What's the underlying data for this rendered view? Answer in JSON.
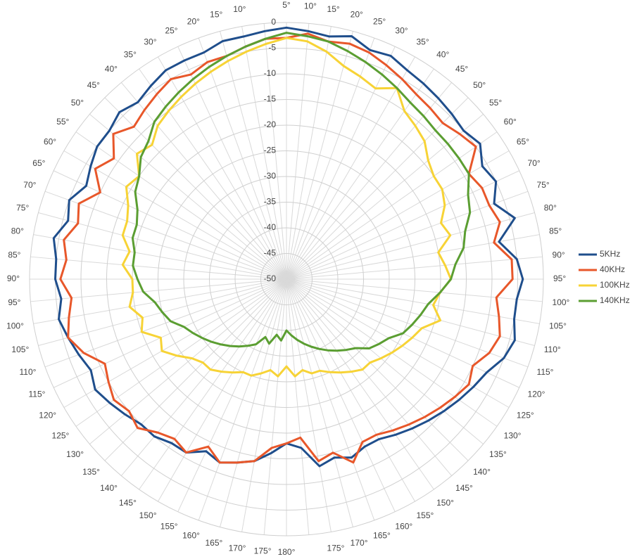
{
  "chart_data": {
    "type": "radar",
    "categories": [
      "5°",
      "10°",
      "15°",
      "20°",
      "25°",
      "30°",
      "35°",
      "40°",
      "45°",
      "50°",
      "55°",
      "60°",
      "65°",
      "70°",
      "75°",
      "80°",
      "85°",
      "90°",
      "95°",
      "100°",
      "105°",
      "110°",
      "115°",
      "120°",
      "125°",
      "130°",
      "135°",
      "140°",
      "145°",
      "150°",
      "155°",
      "160°",
      "165°",
      "170°",
      "175°",
      null,
      "180°",
      "175°",
      "170°",
      "165°",
      "160°",
      "155°",
      "150°",
      "145°",
      "140°",
      "135°",
      "130°",
      "125°",
      "120°",
      "115°",
      "110°",
      "105°",
      "100°",
      "95°",
      "90°",
      "85°",
      "80°",
      "75°",
      "70°",
      "65°",
      "60°",
      "55°",
      "50°",
      "45°",
      "40°",
      "35°",
      "30°",
      "25°",
      "20°",
      "15°",
      "10°",
      null
    ],
    "ylim": [
      -50,
      0
    ],
    "yticks": [
      0,
      -5,
      -10,
      -15,
      -20,
      -25,
      -30,
      -35,
      -40,
      -45,
      -50
    ],
    "grid": true,
    "legend": "right",
    "series": [
      {
        "name": "5KHz",
        "color": "#1f4e8c",
        "values": [
          -1,
          -1.5,
          -2,
          -1,
          -2.5,
          -2,
          -3,
          -3.5,
          -4,
          -4.5,
          -5,
          -4,
          -6,
          -5,
          -7,
          -4,
          -8,
          -5,
          -4,
          -5,
          -5,
          -4,
          -5,
          -7,
          -8,
          -9,
          -10,
          -11,
          -12,
          -13,
          -14,
          -14,
          -13,
          -14,
          -13,
          -17,
          -18,
          -16,
          -14,
          -13,
          -12,
          -13,
          -11,
          -11,
          -10,
          -10,
          -9,
          -8,
          -7,
          -8,
          -7,
          -6,
          -5,
          -6,
          -5,
          -5,
          -4,
          -6,
          -5,
          -7,
          -6,
          -5,
          -5,
          -4,
          -5,
          -4,
          -3,
          -3,
          -3,
          -2,
          -2,
          -1.5
        ]
      },
      {
        "name": "40KHz",
        "color": "#e8572a",
        "values": [
          -3,
          -2,
          -3,
          -2.5,
          -3,
          -4,
          -5,
          -6,
          -6.5,
          -7,
          -6,
          -5,
          -9,
          -8,
          -8,
          -7,
          -9,
          -6,
          -6,
          -9,
          -8,
          -7,
          -8,
          -10,
          -9,
          -10,
          -11,
          -12,
          -13,
          -14,
          -15,
          -15,
          -12,
          -15,
          -14,
          -19,
          -18,
          -17,
          -14,
          -13,
          -12,
          -14,
          -11,
          -12,
          -11,
          -9,
          -10,
          -9,
          -10,
          -11,
          -8,
          -6,
          -7,
          -8,
          -6,
          -7,
          -6,
          -8,
          -7,
          -10,
          -7,
          -9,
          -6,
          -8,
          -7,
          -6,
          -5,
          -6,
          -5,
          -5,
          -4,
          -3
        ]
      },
      {
        "name": "100KHz",
        "color": "#f7d336",
        "values": [
          -3,
          -3.5,
          -5,
          -7,
          -8,
          -9,
          -7,
          -10,
          -11,
          -12,
          -14,
          -15,
          -15,
          -16,
          -18,
          -17,
          -20,
          -19,
          -18,
          -20,
          -21,
          -19,
          -22,
          -23,
          -24,
          -25,
          -26,
          -27,
          -27,
          -28,
          -29,
          -30,
          -31,
          -31,
          -32,
          -31,
          -33,
          -31,
          -32,
          -31,
          -30,
          -30,
          -29,
          -28,
          -27,
          -27,
          -26,
          -24,
          -22,
          -23,
          -20,
          -21,
          -19,
          -20,
          -20,
          -18,
          -19,
          -17,
          -17,
          -16,
          -14,
          -15,
          -12,
          -13,
          -11,
          -10,
          -9,
          -8,
          -7,
          -6,
          -5,
          -4
        ]
      },
      {
        "name": "140KHz",
        "color": "#5b9e32",
        "values": [
          -2,
          -2.5,
          -3,
          -4,
          -5,
          -6,
          -7,
          -8,
          -8.5,
          -9,
          -9,
          -9,
          -9,
          -11,
          -12,
          -14,
          -15,
          -17,
          -18,
          -20,
          -22,
          -23,
          -24,
          -25,
          -27,
          -28,
          -29,
          -31,
          -32,
          -33,
          -34,
          -35,
          -36,
          -37,
          -38,
          -39,
          -40,
          -38,
          -39,
          -37,
          -38,
          -36,
          -35,
          -34,
          -33,
          -32,
          -31,
          -30,
          -29,
          -28,
          -26,
          -25,
          -24,
          -22,
          -21,
          -20,
          -20,
          -19,
          -19,
          -18,
          -16,
          -15,
          -13,
          -12,
          -10,
          -9,
          -8,
          -7,
          -6,
          -5,
          -4,
          -3
        ]
      }
    ]
  }
}
